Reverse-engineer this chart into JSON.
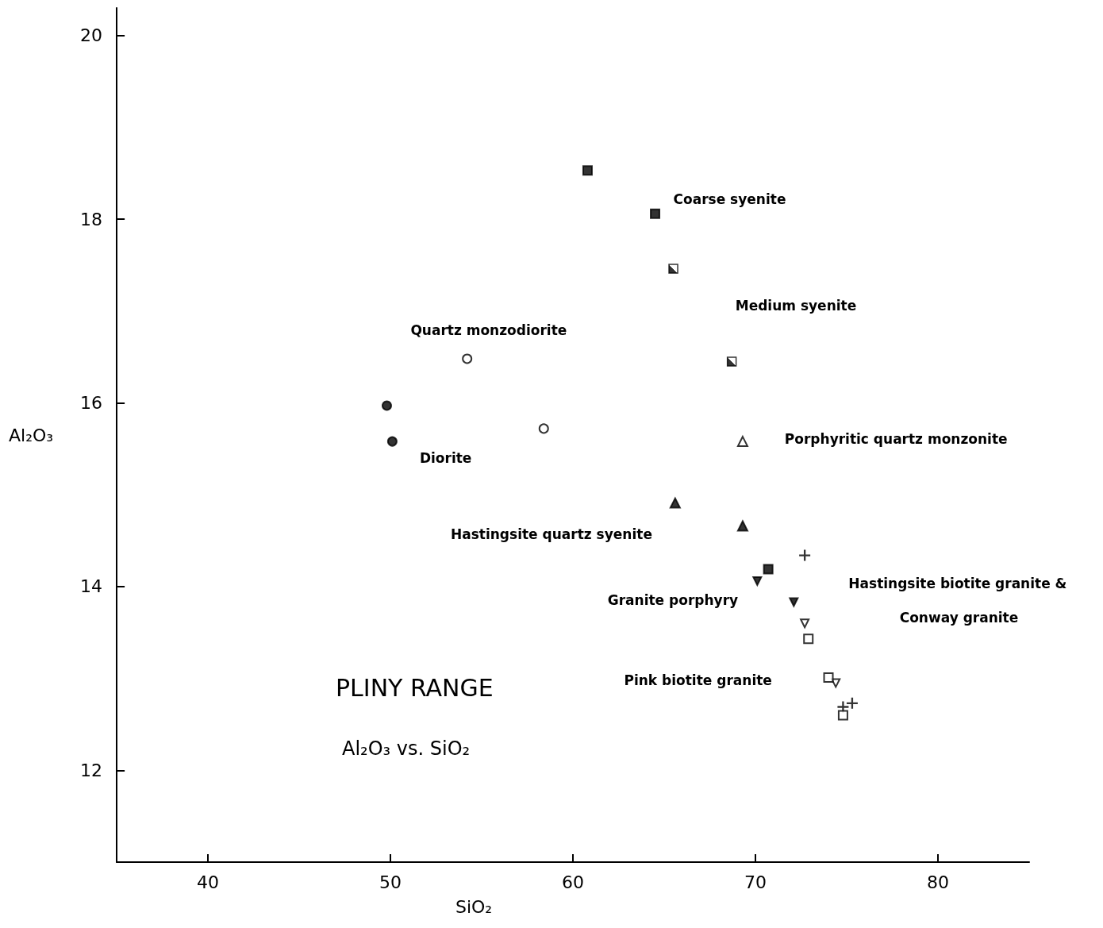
{
  "chart_data": {
    "type": "scatter",
    "title": "PLINY RANGE",
    "subtitle": "Al₂O₃ vs. SiO₂",
    "xlabel": "SiO₂",
    "ylabel": "Al₂O₃",
    "xlim": [
      35,
      85
    ],
    "xticks": [
      40,
      50,
      60,
      70,
      80
    ],
    "ylim": [
      11,
      20.3
    ],
    "yticks": [
      12,
      14,
      16,
      18,
      20
    ],
    "grid": false,
    "series": [
      {
        "color": "#000000",
        "marker": "circle",
        "x": [
          49.8,
          50.1
        ],
        "values": [
          15.97,
          15.58
        ]
      },
      {
        "color": "#000000",
        "marker": "circle-open",
        "x": [
          54.2,
          58.4
        ],
        "values": [
          16.48,
          15.72
        ]
      },
      {
        "color": "#000000",
        "marker": "square",
        "x": [
          60.8,
          64.5,
          70.7
        ],
        "values": [
          18.53,
          18.06,
          14.19
        ]
      },
      {
        "color": "#000000",
        "marker": "square-half",
        "x": [
          65.5,
          68.7
        ],
        "values": [
          17.46,
          16.45
        ]
      },
      {
        "color": "#000000",
        "marker": "triangle-open",
        "x": [
          69.3
        ],
        "values": [
          15.58
        ]
      },
      {
        "color": "#000000",
        "marker": "triangle",
        "x": [
          65.6,
          69.3
        ],
        "values": [
          14.91,
          14.66
        ]
      },
      {
        "color": "#000000",
        "marker": "triangle-down",
        "x": [
          70.1,
          72.1
        ],
        "values": [
          14.06,
          13.83
        ]
      },
      {
        "color": "#000000",
        "marker": "cross",
        "x": [
          72.7,
          74.8,
          75.3
        ],
        "values": [
          14.34,
          12.69,
          12.73
        ]
      },
      {
        "color": "#000000",
        "marker": "square-open",
        "x": [
          72.9,
          74.0,
          74.8
        ],
        "values": [
          13.43,
          13.01,
          12.6
        ]
      },
      {
        "color": "#000000",
        "marker": "triangle-down-open",
        "x": [
          72.7,
          74.4
        ],
        "values": [
          13.6,
          12.95
        ]
      }
    ],
    "annotations": [
      "Coarse syenite",
      "Medium syenite",
      "Quartz monzodiorite",
      "Diorite",
      "Porphyritic quartz monzonite",
      "Hastingsite quartz syenite",
      "Granite porphyry",
      "Hastingsite biotite granite &",
      "Conway granite",
      "Pink biotite granite"
    ]
  }
}
